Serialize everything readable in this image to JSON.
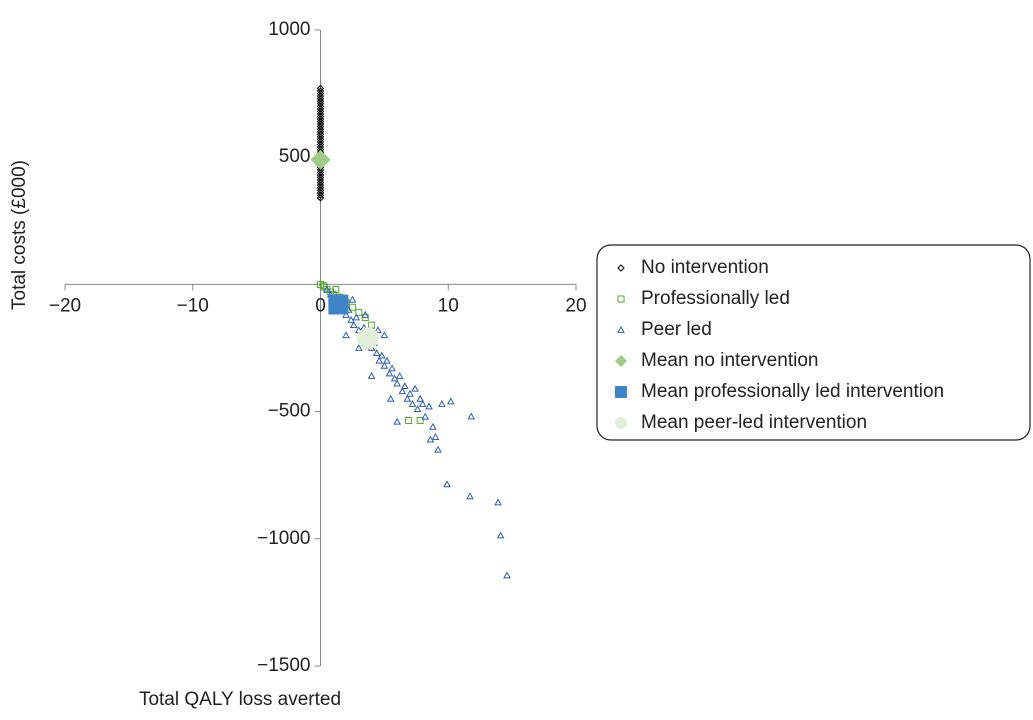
{
  "chart_data": {
    "type": "scatter",
    "xlabel": "Total QALY loss averted",
    "ylabel": "Total costs (£000)",
    "xlim": [
      -20,
      20
    ],
    "ylim": [
      -1500,
      1000
    ],
    "xticks": [
      {
        "value": -20,
        "label": "−20"
      },
      {
        "value": -10,
        "label": "−10"
      },
      0,
      10,
      20
    ],
    "yticks": [
      {
        "value": -1500,
        "label": "−1500"
      },
      {
        "value": -1000,
        "label": "−1000"
      },
      {
        "value": -500,
        "label": "−500"
      },
      500,
      1000
    ],
    "series": [
      {
        "name": "No intervention",
        "color": "#000000",
        "marker": "diamond",
        "filled": false,
        "x": [
          0,
          0,
          0,
          0,
          0,
          0,
          0,
          0,
          0,
          0,
          0,
          0,
          0,
          0,
          0,
          0,
          0,
          0,
          0,
          0,
          0,
          0,
          0,
          0,
          0,
          0,
          0,
          0,
          0,
          0,
          0,
          0,
          0,
          0,
          0,
          0,
          0,
          0,
          0,
          0,
          0,
          0,
          0,
          0
        ],
        "y": [
          340,
          350,
          360,
          370,
          380,
          390,
          400,
          410,
          420,
          430,
          440,
          450,
          460,
          470,
          480,
          490,
          500,
          510,
          520,
          530,
          540,
          550,
          560,
          570,
          580,
          590,
          600,
          610,
          620,
          630,
          640,
          650,
          660,
          670,
          680,
          690,
          700,
          710,
          720,
          730,
          740,
          750,
          760,
          770
        ]
      },
      {
        "name": "Professionally led",
        "color": "#5aa832",
        "marker": "square",
        "filled": false,
        "x": [
          0,
          0.2,
          0.3,
          0.5,
          0.8,
          1,
          1.2,
          1.5,
          2,
          2.5,
          3,
          3.5,
          4,
          6.9,
          7.8
        ],
        "y": [
          0,
          -5,
          -10,
          -20,
          -30,
          -40,
          -20,
          -50,
          -70,
          -90,
          -110,
          -130,
          -160,
          -535,
          -535
        ]
      },
      {
        "name": "Peer led",
        "color": "#2e5fb0",
        "marker": "triangle",
        "filled": false,
        "x": [
          0.5,
          0.8,
          1,
          1.2,
          1.5,
          1.7,
          2,
          2.2,
          2.4,
          2.6,
          2.8,
          3,
          3.2,
          3.4,
          3.6,
          3.8,
          4,
          4.2,
          4.4,
          4.6,
          4.8,
          5,
          5.2,
          5.4,
          5.6,
          5.8,
          6,
          6.2,
          6.4,
          6.6,
          6.8,
          7,
          7.2,
          7.4,
          7.6,
          7.8,
          8,
          8.2,
          8.5,
          8.8,
          9,
          9.2,
          8.6,
          5.5,
          6,
          4,
          3,
          4.5,
          2.5,
          9.5,
          10.2,
          11.8,
          9.9,
          11.7,
          13.9,
          14.1,
          14.6,
          2,
          3.5,
          5
        ],
        "y": [
          -20,
          -40,
          -60,
          -50,
          -90,
          -80,
          -120,
          -100,
          -140,
          -160,
          -130,
          -180,
          -200,
          -170,
          -230,
          -210,
          -250,
          -230,
          -270,
          -300,
          -280,
          -320,
          -300,
          -350,
          -330,
          -370,
          -390,
          -360,
          -420,
          -400,
          -450,
          -430,
          -470,
          -410,
          -490,
          -450,
          -470,
          -520,
          -480,
          -560,
          -600,
          -650,
          -610,
          -450,
          -540,
          -360,
          -250,
          -180,
          -60,
          -470,
          -460,
          -519,
          -786,
          -833,
          -857,
          -987,
          -1144,
          -200,
          -120,
          -200
        ]
      },
      {
        "name": "Mean no intervention",
        "color": "#9ccc87",
        "marker": "diamond",
        "filled": true,
        "x": [
          0
        ],
        "y": [
          490
        ]
      },
      {
        "name": "Mean professionally led intervention",
        "color": "#3d85c6",
        "marker": "square",
        "filled": true,
        "x": [
          1.4
        ],
        "y": [
          -79
        ]
      },
      {
        "name": "Mean peer-led intervention",
        "color": "#e2f0d9",
        "marker": "circle",
        "filled": true,
        "x": [
          3.7
        ],
        "y": [
          -212
        ]
      }
    ]
  }
}
